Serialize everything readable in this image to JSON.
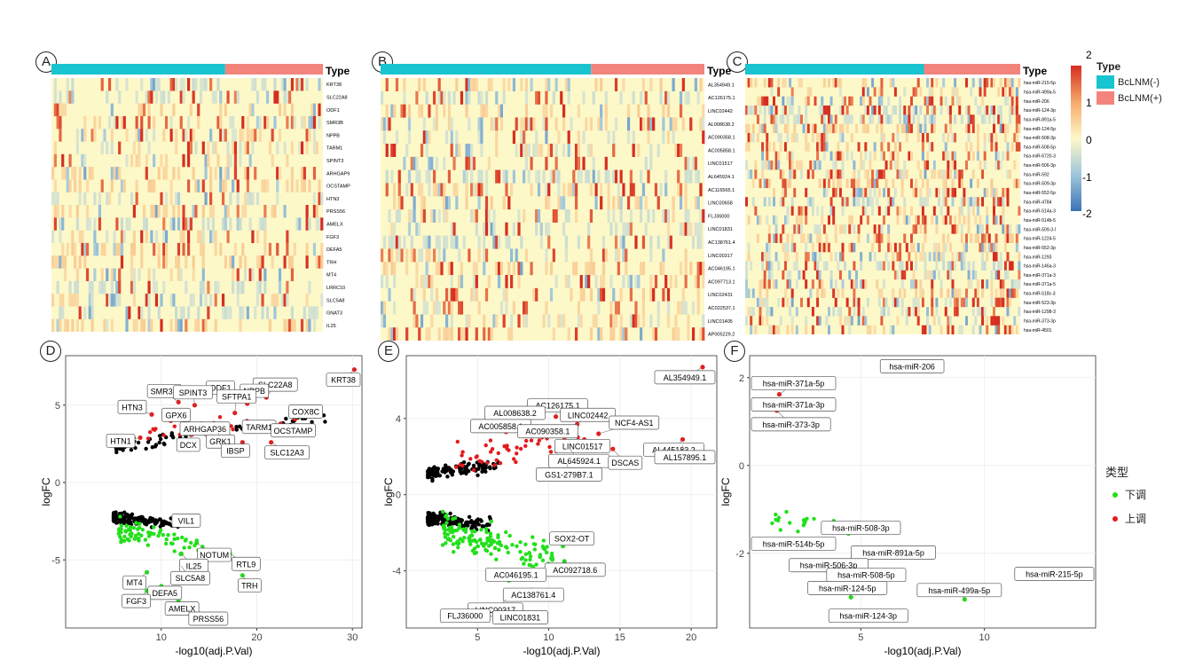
{
  "colors": {
    "neg_bar": "#17c4cf",
    "pos_bar": "#f2847c",
    "heat_low": "#3a73b5",
    "heat_mid": "#fdf8c8",
    "heat_high": "#d62d20",
    "up": "#e41a1c",
    "down": "#22e01a",
    "ns": "#000000"
  },
  "heatmap_legend": {
    "type_title": "Type",
    "neg_label": "BcLNM(-)",
    "pos_label": "BcLNM(+)",
    "scale_ticks": [
      "2",
      "1",
      "0",
      "-1",
      "-2"
    ]
  },
  "cn_legend": {
    "title": "类型",
    "down_label": "下调",
    "up_label": "上调"
  },
  "chart_data": [
    {
      "panel": "A",
      "type": "heatmap",
      "annotation_label": "Type",
      "rows": [
        "KRT38",
        "SLC22A8",
        "ODF1",
        "SMR3B",
        "NPPB",
        "TARM1",
        "SPINT3",
        "ARHGAP9",
        "OCSTAMP",
        "HTN3",
        "PRSS56",
        "AMELX",
        "FGF3",
        "DEFA5",
        "TRH",
        "MT4",
        "LRRC10",
        "SLC5A8",
        "GNAT3",
        "IL25"
      ],
      "groups": [
        {
          "name": "BcLNM(-)",
          "fraction": 0.64
        },
        {
          "name": "BcLNM(+)",
          "fraction": 0.36
        }
      ],
      "value_range": [
        -2,
        2
      ]
    },
    {
      "panel": "B",
      "type": "heatmap",
      "annotation_label": "Type",
      "rows": [
        "AL354949.1",
        "AC126175.1",
        "LINC02442",
        "AL008638.2",
        "AC090358.1",
        "AC005858.1",
        "LINC01517",
        "AL645924.1",
        "AC116565.1",
        "LINC00658",
        "FLJ36000",
        "LINC01831",
        "AC138761.4",
        "LINC00317",
        "AC046195.1",
        "AC097713.1",
        "LINC02431",
        "AC022537.1",
        "LINC01405",
        "AP005229.2"
      ],
      "groups": [
        {
          "name": "BcLNM(-)",
          "fraction": 0.65
        },
        {
          "name": "BcLNM(+)",
          "fraction": 0.35
        }
      ],
      "value_range": [
        -2,
        2
      ]
    },
    {
      "panel": "C",
      "type": "heatmap",
      "annotation_label": "Type",
      "rows": [
        "hsa-miR-215-5p",
        "hsa-miR-499a-5p",
        "hsa-miR-206",
        "hsa-miR-124-3p",
        "hsa-miR-891a-5p",
        "hsa-miR-124-5p",
        "hsa-miR-508-3p",
        "hsa-miR-508-5p",
        "hsa-miR-6720-3p",
        "hsa-miR-506-3p",
        "hsa-miR-592",
        "hsa-miR-509-3p",
        "hsa-miR-552-5p",
        "hsa-miR-4784",
        "hsa-miR-514a-3p",
        "hsa-miR-514b-5p",
        "hsa-miR-509-3-5p",
        "hsa-miR-1224-5p",
        "hsa-miR-552-3p",
        "hsa-miR-1293",
        "hsa-miR-146a-3p",
        "hsa-miR-371a-3p",
        "hsa-miR-371a-5p",
        "hsa-miR-518c-3p",
        "hsa-miR-523-3p",
        "hsa-miR-1298-3p",
        "hsa-miR-373-3p",
        "hsa-miR-4501"
      ],
      "groups": [
        {
          "name": "BcLNM(-)",
          "fraction": 0.65
        },
        {
          "name": "BcLNM(+)",
          "fraction": 0.35
        }
      ],
      "value_range": [
        -2,
        2
      ]
    },
    {
      "panel": "D",
      "type": "scatter",
      "xlabel": "-log10(adj.P.Val)",
      "ylabel": "logFC",
      "xlim": [
        0,
        31
      ],
      "ylim": [
        -9.4,
        8.2
      ],
      "xticks": [
        10,
        20,
        30
      ],
      "yticks": [
        -5,
        0,
        5
      ],
      "labeled_points": [
        {
          "label": "KRT38",
          "x": 30.2,
          "y": 7.3,
          "dir": "up"
        },
        {
          "label": "SLC22A8",
          "x": 21.0,
          "y": 5.5,
          "dir": "up"
        },
        {
          "label": "NPPB",
          "x": 19.0,
          "y": 5.1,
          "dir": "up"
        },
        {
          "label": "ODF1",
          "x": 16.2,
          "y": 5.3,
          "dir": "up"
        },
        {
          "label": "SMR3B",
          "x": 11.8,
          "y": 5.2,
          "dir": "up"
        },
        {
          "label": "SPINT3",
          "x": 13.5,
          "y": 5.0,
          "dir": "up"
        },
        {
          "label": "HTN3",
          "x": 9.0,
          "y": 4.4,
          "dir": "up"
        },
        {
          "label": "SFTPA1",
          "x": 17.7,
          "y": 4.5,
          "dir": "up"
        },
        {
          "label": "COX8C",
          "x": 24.0,
          "y": 4.1,
          "dir": "up"
        },
        {
          "label": "GPX6",
          "x": 11.0,
          "y": 4.0,
          "dir": "up"
        },
        {
          "label": "ARHGAP36",
          "x": 14.2,
          "y": 3.8,
          "dir": "up"
        },
        {
          "label": "TARM1",
          "x": 19.5,
          "y": 3.8,
          "dir": "up"
        },
        {
          "label": "OCSTAMP",
          "x": 22.5,
          "y": 3.8,
          "dir": "up"
        },
        {
          "label": "HTN1",
          "x": 7.8,
          "y": 2.9,
          "dir": "up"
        },
        {
          "label": "DCX",
          "x": 13.2,
          "y": 3.1,
          "dir": "up"
        },
        {
          "label": "GRK1",
          "x": 16.0,
          "y": 3.2,
          "dir": "up"
        },
        {
          "label": "IBSP",
          "x": 18.5,
          "y": 2.6,
          "dir": "up"
        },
        {
          "label": "SLC12A3",
          "x": 21.5,
          "y": 2.6,
          "dir": "up"
        },
        {
          "label": "VIL1",
          "x": 11.5,
          "y": -2.6,
          "dir": "down"
        },
        {
          "label": "NOTUM",
          "x": 13.7,
          "y": -3.9,
          "dir": "down"
        },
        {
          "label": "IL25",
          "x": 12.1,
          "y": -4.6,
          "dir": "down"
        },
        {
          "label": "RTL9",
          "x": 17.2,
          "y": -4.6,
          "dir": "down"
        },
        {
          "label": "SLC5A8",
          "x": 12.1,
          "y": -5.4,
          "dir": "down"
        },
        {
          "label": "TRH",
          "x": 18.5,
          "y": -6.0,
          "dir": "down"
        },
        {
          "label": "MT4",
          "x": 8.5,
          "y": -5.8,
          "dir": "down"
        },
        {
          "label": "DEFA5",
          "x": 10.0,
          "y": -6.7,
          "dir": "down"
        },
        {
          "label": "FGF3",
          "x": 8.5,
          "y": -7.0,
          "dir": "down"
        },
        {
          "label": "AMELX",
          "x": 11.8,
          "y": -7.6,
          "dir": "down"
        },
        {
          "label": "PRSS56",
          "x": 14.0,
          "y": -8.7,
          "dir": "down"
        }
      ]
    },
    {
      "panel": "E",
      "type": "scatter",
      "xlabel": "-log10(adj.P.Val)",
      "ylabel": "logFC",
      "xlim": [
        0,
        21.8
      ],
      "ylim": [
        -7.0,
        7.3
      ],
      "xticks": [
        5,
        10,
        15,
        20
      ],
      "yticks": [
        -4,
        0,
        4
      ],
      "labeled_points": [
        {
          "label": "AL354949.1",
          "x": 20.8,
          "y": 6.7,
          "dir": "up"
        },
        {
          "label": "AC126175.1",
          "x": 10.5,
          "y": 4.1,
          "dir": "up"
        },
        {
          "label": "AL008638.2",
          "x": 8.5,
          "y": 3.9,
          "dir": "up"
        },
        {
          "label": "LINC02442",
          "x": 12.0,
          "y": 3.7,
          "dir": "up"
        },
        {
          "label": "AC005858.1",
          "x": 7.0,
          "y": 3.3,
          "dir": "up"
        },
        {
          "label": "AC090358.1",
          "x": 10.3,
          "y": 3.4,
          "dir": "up"
        },
        {
          "label": "LINC01517",
          "x": 12.5,
          "y": 2.9,
          "dir": "up"
        },
        {
          "label": "NCF4-AS1",
          "x": 13.5,
          "y": 3.2,
          "dir": "up"
        },
        {
          "label": "AL445183.2",
          "x": 19.4,
          "y": 2.9,
          "dir": "up"
        },
        {
          "label": "AL645924.1",
          "x": 11.5,
          "y": 2.4,
          "dir": "up"
        },
        {
          "label": "DSCAS",
          "x": 14.5,
          "y": 2.4,
          "dir": "up"
        },
        {
          "label": "AL157895.1",
          "x": 19.4,
          "y": 2.6,
          "dir": "up"
        },
        {
          "label": "GS1-279B7.1",
          "x": 11.3,
          "y": 1.6,
          "dir": "up"
        },
        {
          "label": "SOX2-OT",
          "x": 11.0,
          "y": -2.7,
          "dir": "down"
        },
        {
          "label": "AC092718.6",
          "x": 11.1,
          "y": -3.5,
          "dir": "down"
        },
        {
          "label": "AC046195.1",
          "x": 7.2,
          "y": -4.5,
          "dir": "down"
        },
        {
          "label": "AC138761.4",
          "x": 8.8,
          "y": -5.0,
          "dir": "down"
        },
        {
          "label": "LINC00317",
          "x": 7.0,
          "y": -5.5,
          "dir": "down"
        },
        {
          "label": "LINC01831",
          "x": 7.5,
          "y": -6.0,
          "dir": "down"
        },
        {
          "label": "FLJ36000",
          "x": 5.0,
          "y": -6.1,
          "dir": "down"
        }
      ]
    },
    {
      "panel": "F",
      "type": "scatter",
      "xlabel": "-log10(adj.P.Val)",
      "ylabel": "logFC",
      "xlim": [
        0.5,
        14.5
      ],
      "ylim": [
        -3.7,
        2.5
      ],
      "xticks": [
        5,
        10
      ],
      "yticks": [
        -2,
        0,
        2
      ],
      "labeled_points": [
        {
          "label": "hsa-miR-206",
          "x": 6.5,
          "y": 2.25,
          "dir": "up"
        },
        {
          "label": "hsa-miR-371a-5p",
          "x": 1.7,
          "y": 1.62,
          "dir": "up"
        },
        {
          "label": "hsa-miR-371a-3p",
          "x": 1.7,
          "y": 1.42,
          "dir": "up"
        },
        {
          "label": "hsa-miR-373-3p",
          "x": 1.6,
          "y": 1.25,
          "dir": "up"
        },
        {
          "label": "hsa-miR-508-3p",
          "x": 4.5,
          "y": -1.55,
          "dir": "down"
        },
        {
          "label": "hsa-miR-514b-5p",
          "x": 2.0,
          "y": -1.75,
          "dir": "down"
        },
        {
          "label": "hsa-miR-891a-5p",
          "x": 5.6,
          "y": -1.95,
          "dir": "down"
        },
        {
          "label": "hsa-miR-506-3p",
          "x": 4.2,
          "y": -2.2,
          "dir": "down"
        },
        {
          "label": "hsa-miR-508-5p",
          "x": 4.5,
          "y": -2.3,
          "dir": "down"
        },
        {
          "label": "hsa-miR-215-5p",
          "x": 14.2,
          "y": -2.4,
          "dir": "down"
        },
        {
          "label": "hsa-miR-124-5p",
          "x": 4.6,
          "y": -3.0,
          "dir": "down"
        },
        {
          "label": "hsa-miR-499a-5p",
          "x": 9.2,
          "y": -3.05,
          "dir": "down"
        },
        {
          "label": "hsa-miR-124-3p",
          "x": 4.8,
          "y": -3.35,
          "dir": "down"
        }
      ]
    }
  ]
}
